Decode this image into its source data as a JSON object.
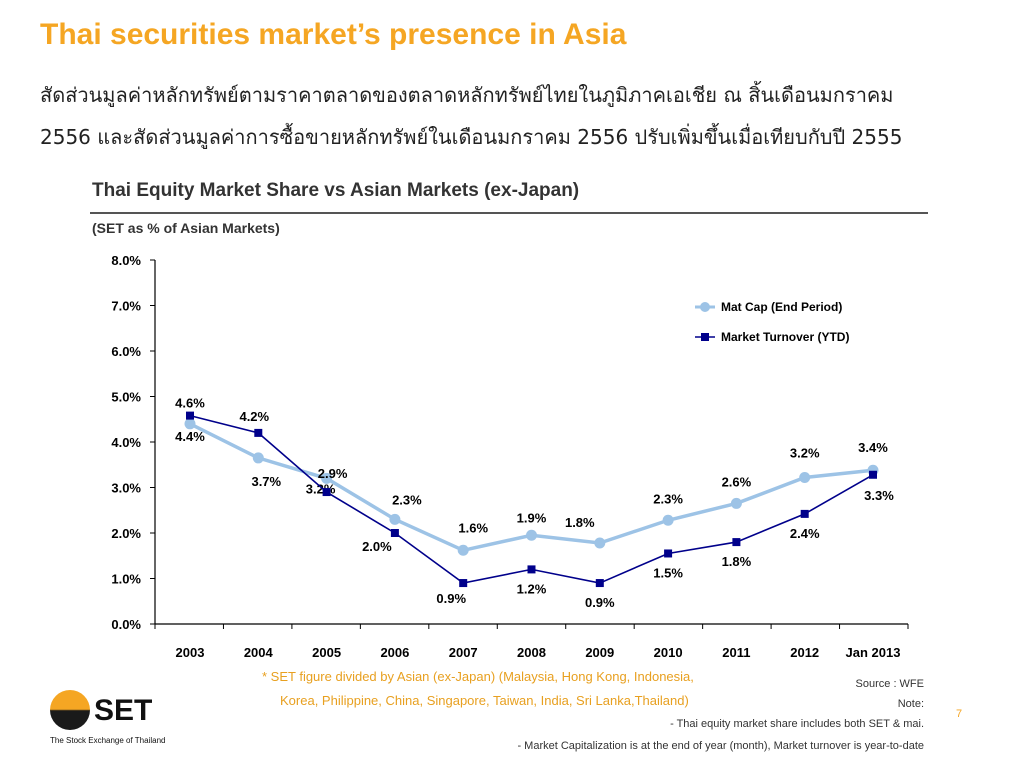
{
  "slide": {
    "title": "Thai securities market’s presence in Asia",
    "thai_line1": "สัดส่วนมูลค่าหลักทรัพย์ตามราคาตลาดของตลาดหลักทรัพย์ไทยในภูมิภาคเอเชีย ณ สิ้นเดือนมกราคม",
    "thai_line2": "2556 และสัดส่วนมูลค่าการซื้อขายหลักทรัพย์ในเดือนมกราคม 2556 ปรับเพิ่มขึ้นเมื่อเทียบกับปี 2555",
    "page_number": "7"
  },
  "chart_data": {
    "type": "line",
    "title": "Thai Equity Market Share vs Asian Markets (ex-Japan)",
    "subtitle": "(SET as % of Asian Markets)",
    "categories": [
      "2003",
      "2004",
      "2005",
      "2006",
      "2007",
      "2008",
      "2009",
      "2010",
      "2011",
      "2012",
      "Jan 2013"
    ],
    "y_ticks": [
      "0.0%",
      "1.0%",
      "2.0%",
      "3.0%",
      "4.0%",
      "5.0%",
      "6.0%",
      "7.0%",
      "8.0%"
    ],
    "ylim": [
      0,
      8
    ],
    "legend_position": "top-right",
    "series": [
      {
        "name": "Mat Cap (End Period)",
        "color": "#9DC3E6",
        "values": [
          4.4,
          3.65,
          3.2,
          2.3,
          1.62,
          1.95,
          1.78,
          2.28,
          2.65,
          3.22,
          3.38
        ],
        "labels": [
          "4.4%",
          "3.7%",
          "3.2%",
          "2.3%",
          "1.6%",
          "1.9%",
          "1.8%",
          "2.3%",
          "2.6%",
          "3.2%",
          "3.4%"
        ]
      },
      {
        "name": "Market Turnover (YTD)",
        "color": "#00008B",
        "values": [
          4.58,
          4.2,
          2.9,
          2.0,
          0.9,
          1.2,
          0.9,
          1.55,
          1.8,
          2.42,
          3.28
        ],
        "labels": [
          "4.6%",
          "4.2%",
          "2.9%",
          "2.0%",
          "0.9%",
          "1.2%",
          "0.9%",
          "1.5%",
          "1.8%",
          "2.4%",
          "3.3%"
        ]
      }
    ]
  },
  "footer": {
    "footnote_line1": "*  SET figure divided by Asian (ex-Japan) (Malaysia, Hong Kong, Indonesia,",
    "footnote_line2": "Korea, Philippine, China, Singapore, Taiwan, India, Sri Lanka,Thailand)",
    "source": "Source : WFE",
    "note_label": "Note:",
    "note1": "- Thai equity market share includes both  SET & mai.",
    "note2": "- Market Capitalization is at the end of year (month), Market turnover is year-to-date"
  },
  "logo": {
    "text": "SET",
    "subtitle": "The Stock Exchange of Thailand"
  }
}
